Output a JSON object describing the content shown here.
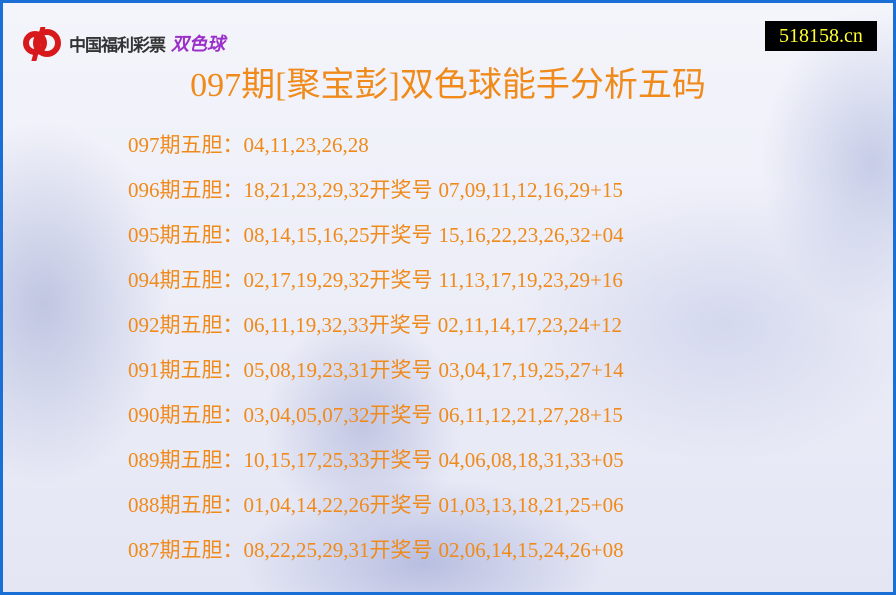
{
  "logo": {
    "text": "中国福利彩票",
    "accent": "双色球",
    "brand_color": "#d8191c",
    "accent_color": "#9b2fc9"
  },
  "site_badge": "518158.cn",
  "title": "097期[聚宝彭]双色球能手分析五码",
  "draw_label": "开奖号",
  "rows": [
    {
      "period": "097期五胆：",
      "picks": "04,11,23,26,28",
      "draw": ""
    },
    {
      "period": "096期五胆：",
      "picks": "18,21,23,29,32",
      "draw": "07,09,11,12,16,29+15"
    },
    {
      "period": "095期五胆：",
      "picks": "08,14,15,16,25",
      "draw": "15,16,22,23,26,32+04"
    },
    {
      "period": "094期五胆：",
      "picks": "02,17,19,29,32",
      "draw": "11,13,17,19,23,29+16"
    },
    {
      "period": "092期五胆：",
      "picks": "06,11,19,32,33",
      "draw": "02,11,14,17,23,24+12"
    },
    {
      "period": "091期五胆：",
      "picks": "05,08,19,23,31",
      "draw": "03,04,17,19,25,27+14"
    },
    {
      "period": "090期五胆：",
      "picks": "03,04,05,07,32",
      "draw": "06,11,12,21,27,28+15"
    },
    {
      "period": "089期五胆：",
      "picks": "10,15,17,25,33",
      "draw": "04,06,08,18,31,33+05"
    },
    {
      "period": "088期五胆：",
      "picks": "01,04,14,22,26",
      "draw": "01,03,13,18,21,25+06"
    },
    {
      "period": "087期五胆：",
      "picks": "08,22,25,29,31",
      "draw": "02,06,14,15,24,26+08"
    }
  ],
  "colors": {
    "text": "#f08a1a",
    "border": "#1a6fd6",
    "badge_bg": "#000000",
    "badge_text": "#ffff33"
  }
}
